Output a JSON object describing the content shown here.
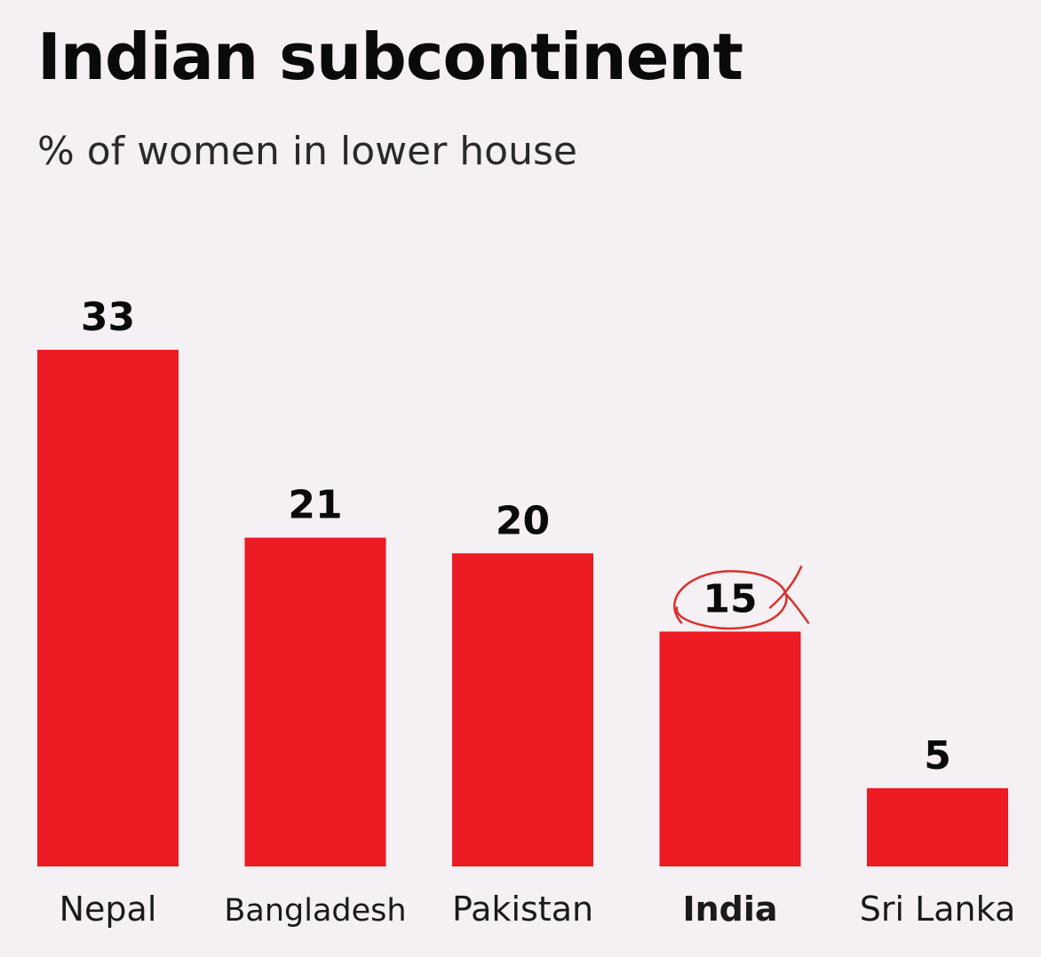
{
  "chart_data": {
    "type": "bar",
    "title": "Indian subcontinent",
    "subtitle": "% of women in lower house",
    "categories": [
      "Nepal",
      "Bangladesh",
      "Pakistan",
      "India",
      "Sri Lanka"
    ],
    "values": [
      33,
      21,
      20,
      15,
      5
    ],
    "highlight_category": "India",
    "ylim": [
      0,
      33
    ],
    "grid": false,
    "bar_color": "#ec1b24",
    "annotation": {
      "category": "India",
      "type": "hand-drawn circle",
      "color": "#d9302c"
    }
  }
}
